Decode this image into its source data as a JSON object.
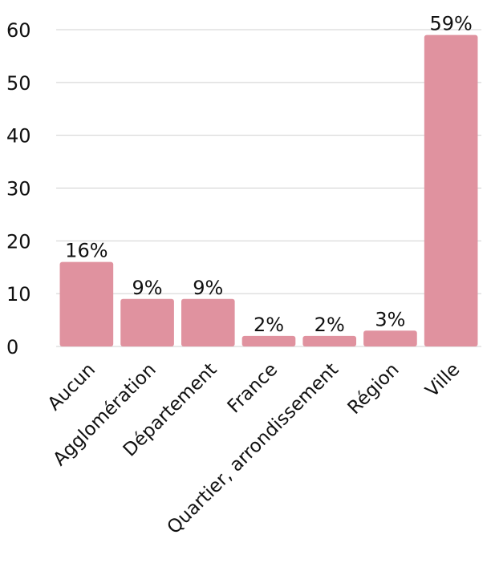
{
  "chart_data": {
    "type": "bar",
    "categories": [
      "Aucun",
      "Agglomération",
      "Département",
      "France",
      "Quartier, arrondissement",
      "Région",
      "Ville"
    ],
    "values": [
      16,
      9,
      9,
      2,
      2,
      3,
      59
    ],
    "data_labels": [
      "16%",
      "9%",
      "9%",
      "2%",
      "2%",
      "3%",
      "59%"
    ],
    "ylim": [
      0,
      60
    ],
    "yticks": [
      0,
      10,
      20,
      30,
      40,
      50,
      60
    ],
    "grid": true,
    "bar_color": "#e0929f"
  }
}
